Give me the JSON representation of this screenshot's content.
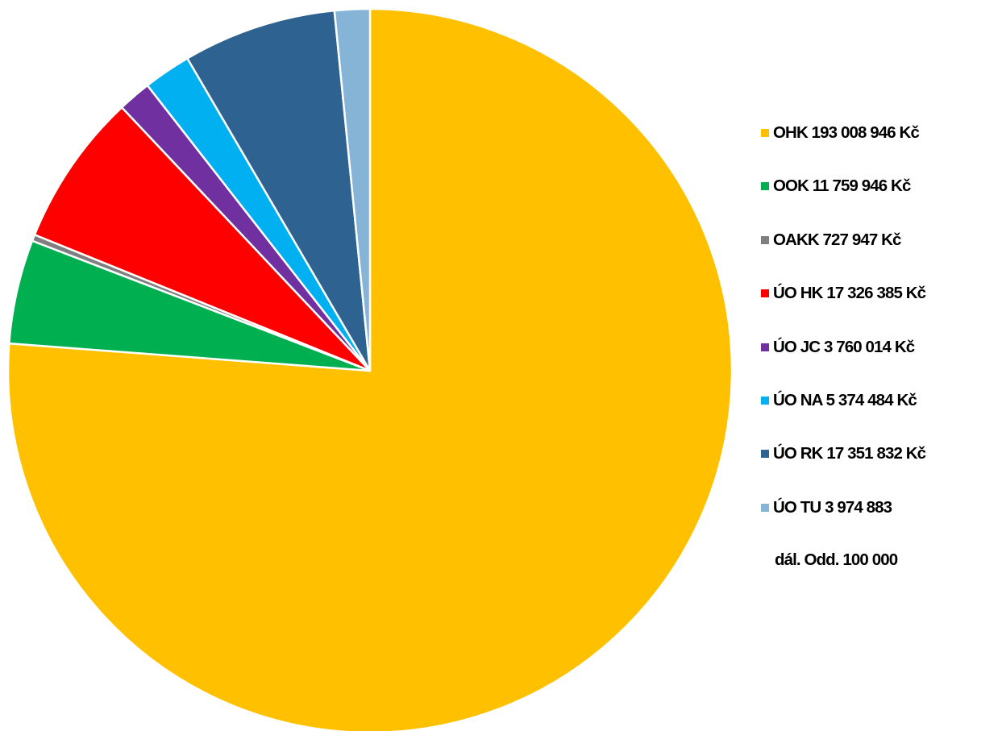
{
  "chart_data": {
    "type": "pie",
    "legend_position": "right",
    "start_angle": "12 o'clock",
    "direction": "clockwise",
    "slices": [
      {
        "label": "OHK",
        "value": 193008946,
        "display_value": "193 008 946 Kč",
        "color": "#FFC000"
      },
      {
        "label": "OOK",
        "value": 11759946,
        "display_value": "11 759 946 Kč",
        "color": "#00B050"
      },
      {
        "label": "OAKK",
        "value": 727947,
        "display_value": "727 947 Kč",
        "color": "#7F7F7F"
      },
      {
        "label": "ÚO HK",
        "value": 17326385,
        "display_value": "17 326 385 Kč",
        "color": "#FF0000"
      },
      {
        "label": "ÚO JC",
        "value": 3760014,
        "display_value": "3 760 014 Kč",
        "color": "#7030A0"
      },
      {
        "label": "ÚO NA",
        "value": 5374484,
        "display_value": "5 374 484 Kč",
        "color": "#00B0F0"
      },
      {
        "label": "ÚO RK",
        "value": 17351832,
        "display_value": "17 351 832 Kč",
        "color": "#2E6391"
      },
      {
        "label": "ÚO TU",
        "value": 3974883,
        "display_value": "3 974 883",
        "color": "#85B4D6"
      }
    ],
    "legend": {
      "entries": [
        "OHK 193 008 946 Kč",
        "OOK  11 759 946 Kč",
        "OAKK  727 947 Kč",
        "ÚO HK  17 326 385 Kč",
        "ÚO JC  3 760 014 Kč",
        "ÚO NA  5 374 484 Kč",
        "ÚO RK  17 351 832 Kč",
        "ÚO TU  3 974 883"
      ],
      "note": "dál. Odd.  100 000"
    }
  }
}
